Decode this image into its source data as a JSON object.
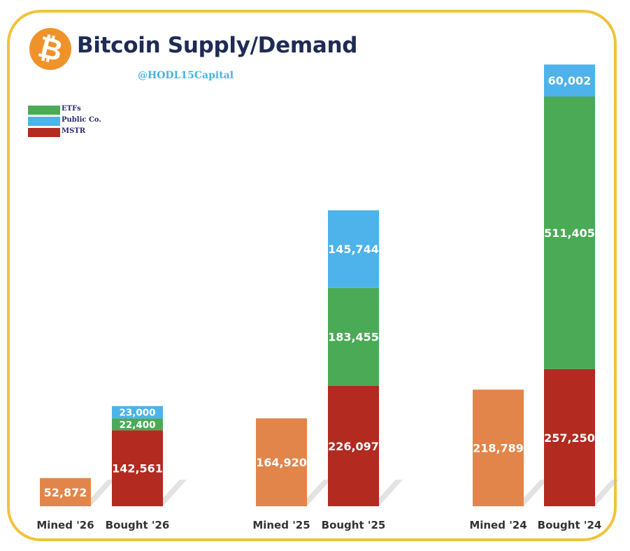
{
  "header": {
    "title": "Bitcoin Supply/Demand",
    "handle": "@HODL15Capital",
    "logo_symbol": "₿"
  },
  "chart_data": {
    "type": "bar",
    "stacked": true,
    "title": "Bitcoin Supply/Demand",
    "categories": [
      "Mined '26",
      "Bought '26",
      "Mined '25",
      "Bought '25",
      "Mined '24",
      "Bought '24"
    ],
    "legend": [
      {
        "name": "ETFs",
        "color": "#4aaa55"
      },
      {
        "name": "Public Co.",
        "color": "#4db3ea"
      },
      {
        "name": "MSTR",
        "color": "#b22a20"
      }
    ],
    "series": [
      {
        "name": "Mined",
        "color": "#e2854a",
        "values": [
          52872,
          0,
          164920,
          0,
          218789,
          0
        ],
        "labels": [
          "52,872",
          "",
          "164,920",
          "",
          "218,789",
          ""
        ]
      },
      {
        "name": "MSTR",
        "color": "#b22a20",
        "values": [
          0,
          142561,
          0,
          226097,
          0,
          257250
        ],
        "labels": [
          "",
          "142,561",
          "",
          "226,097",
          "",
          "257,250"
        ]
      },
      {
        "name": "ETFs",
        "color": "#4aaa55",
        "values": [
          0,
          22400,
          0,
          183455,
          0,
          511405
        ],
        "labels": [
          "",
          "22,400",
          "",
          "183,455",
          "",
          "511,405"
        ]
      },
      {
        "name": "Public Co.",
        "color": "#4db3ea",
        "values": [
          0,
          23000,
          0,
          145744,
          0,
          60002
        ],
        "labels": [
          "",
          "23,000",
          "",
          "145,744",
          "",
          "60,002"
        ]
      }
    ],
    "ylim": [
      0,
      850000
    ],
    "xlabel": "",
    "ylabel": "",
    "grid": false,
    "legend_position": "top-left"
  }
}
